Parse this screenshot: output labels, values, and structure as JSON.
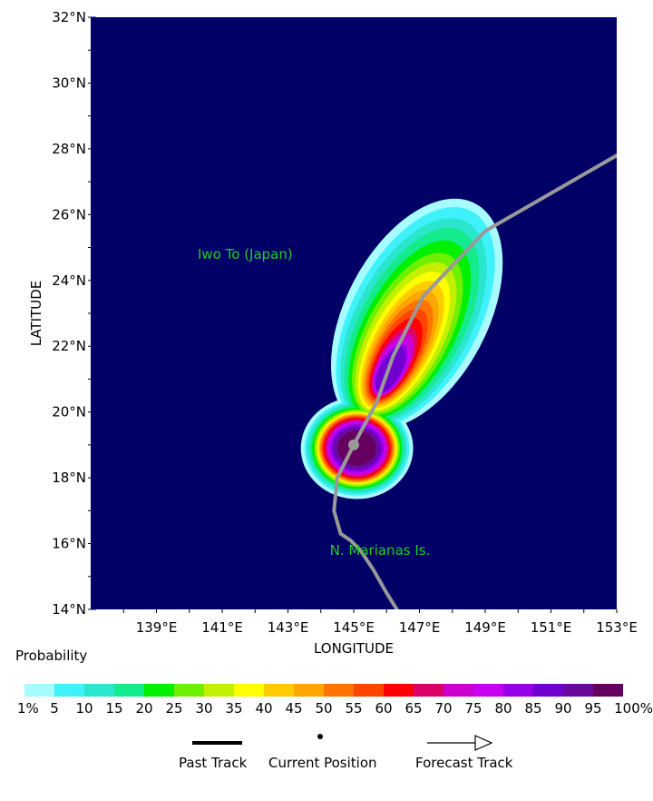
{
  "map": {
    "background_color": "#000066",
    "lat_labels": [
      "32°N",
      "30°N",
      "28°N",
      "26°N",
      "24°N",
      "22°N",
      "20°N",
      "18°N",
      "16°N",
      "14°N"
    ],
    "lon_labels": [
      "139°E",
      "141°E",
      "143°E",
      "145°E",
      "147°E",
      "149°E",
      "151°E",
      "153°E"
    ],
    "x_axis_title": "LONGITUDE",
    "y_axis_title": "LATITUDE",
    "places": [
      {
        "name": "Iwo To (Japan)",
        "lon": 141.7,
        "lat": 24.8
      },
      {
        "name": "N. Marianas Is.",
        "lon": 145.8,
        "lat": 15.8
      }
    ],
    "current_position": {
      "lon": 145.0,
      "lat": 19.0
    },
    "track": [
      [
        146.5,
        13.7
      ],
      [
        146.0,
        14.5
      ],
      [
        145.6,
        15.2
      ],
      [
        145.2,
        15.8
      ],
      [
        144.9,
        16.1
      ],
      [
        144.6,
        16.3
      ],
      [
        144.4,
        17.0
      ],
      [
        144.5,
        18.0
      ],
      [
        145.0,
        19.0
      ],
      [
        145.7,
        20.3
      ],
      [
        146.2,
        21.7
      ],
      [
        147.1,
        23.5
      ],
      [
        149.0,
        25.5
      ],
      [
        153.0,
        27.8
      ]
    ],
    "track_color": "#999999"
  },
  "probability": {
    "title": "Probability",
    "colors": [
      "#a7fcff",
      "#3ff1fa",
      "#29e6cc",
      "#14eb8c",
      "#00f000",
      "#6ef000",
      "#c2f000",
      "#ffff00",
      "#ffcc00",
      "#ffa500",
      "#ff7300",
      "#ff4500",
      "#ff0000",
      "#dd0066",
      "#cc00cc",
      "#c800f0",
      "#9600e6",
      "#7000d0",
      "#6a0a9a",
      "#650060"
    ],
    "tick_labels": [
      "1%",
      "5",
      "10",
      "15",
      "20",
      "25",
      "30",
      "35",
      "40",
      "45",
      "50",
      "55",
      "60",
      "65",
      "70",
      "75",
      "80",
      "85",
      "90",
      "95",
      "100%"
    ]
  },
  "legend": {
    "past_track": "Past Track",
    "current_position": "Current Position",
    "forecast_track": "Forecast Track"
  }
}
